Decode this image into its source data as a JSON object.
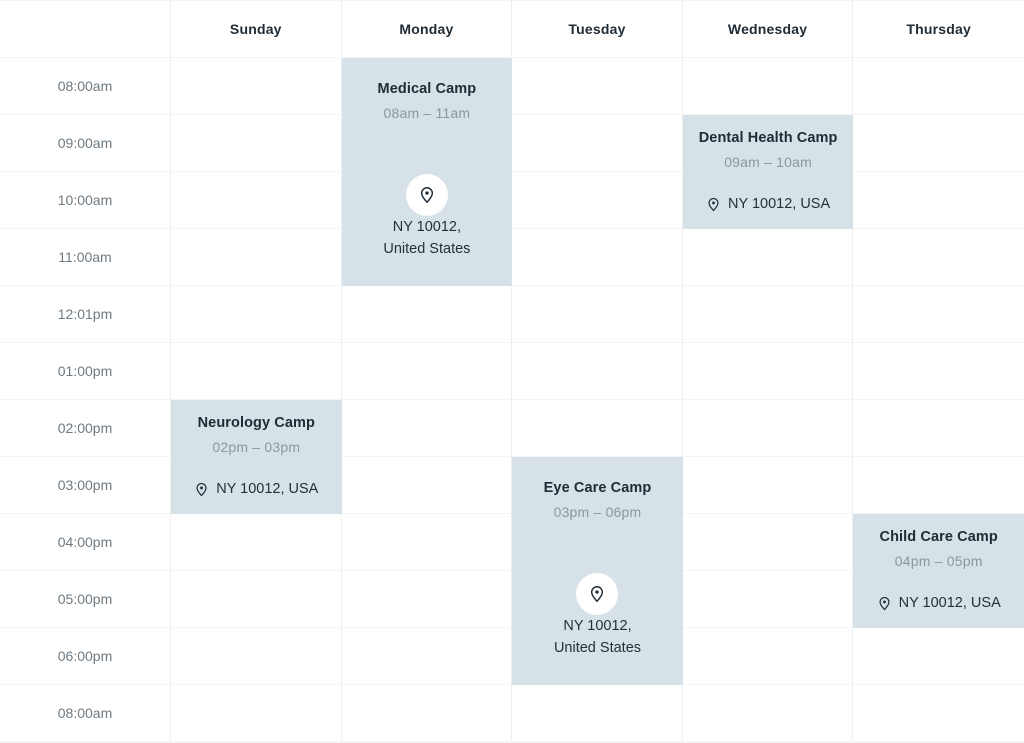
{
  "calendar": {
    "day_headers": [
      "Sunday",
      "Monday",
      "Tuesday",
      "Wednesday",
      "Thursday"
    ],
    "time_labels": [
      "08:00am",
      "09:00am",
      "10:00am",
      "11:00am",
      "12:01pm",
      "01:00pm",
      "02:00pm",
      "03:00pm",
      "04:00pm",
      "05:00pm",
      "06:00pm",
      "08:00am"
    ],
    "events": [
      {
        "title": "Medical Camp",
        "time_range": "08am – 11am",
        "day": "Monday",
        "layout": "large",
        "location_lines": [
          "NY 10012,",
          "United States"
        ],
        "grid": {
          "col": 3,
          "row": 2,
          "span": 4
        }
      },
      {
        "title": "Dental Health Camp",
        "time_range": "09am – 10am",
        "day": "Wednesday",
        "layout": "compact",
        "location_lines": [
          "NY 10012, USA"
        ],
        "grid": {
          "col": 5,
          "row": 3,
          "span": 2
        }
      },
      {
        "title": "Neurology Camp",
        "time_range": "02pm – 03pm",
        "day": "Sunday",
        "layout": "compact",
        "location_lines": [
          "NY 10012, USA"
        ],
        "grid": {
          "col": 2,
          "row": 8,
          "span": 2
        }
      },
      {
        "title": "Eye Care Camp",
        "time_range": "03pm – 06pm",
        "day": "Tuesday",
        "layout": "large",
        "location_lines": [
          "NY 10012,",
          "United States"
        ],
        "grid": {
          "col": 4,
          "row": 9,
          "span": 4
        }
      },
      {
        "title": "Child Care Camp",
        "time_range": "04pm – 05pm",
        "day": "Thursday",
        "layout": "compact",
        "location_lines": [
          "NY 10012, USA"
        ],
        "grid": {
          "col": 6,
          "row": 10,
          "span": 2
        }
      }
    ],
    "icons": {
      "location_pin": "location-pin-icon"
    },
    "colors": {
      "event_bg": "#d6e2e7",
      "day_header_text": "#1f2b35",
      "time_label_text": "#6f7a82",
      "event_title_text": "#202c36",
      "event_time_text": "#8d979e",
      "location_text": "#25313a",
      "grid_line_vertical": "#eef0f1",
      "grid_line_horizontal": "#f3f4f5",
      "icon_color": "#222f3a",
      "icon_circle_bg": "#ffffff"
    }
  }
}
